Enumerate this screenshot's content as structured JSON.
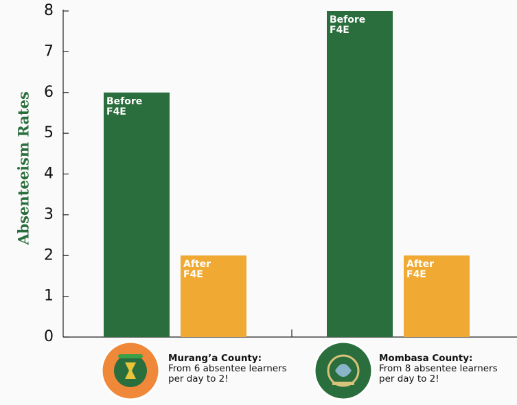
{
  "chart_data": {
    "type": "bar",
    "y_label": "Absenteeism Rates",
    "categories": [
      "Murang’a County:",
      "Mombasa County:"
    ],
    "captions": [
      "From 6 absentee learners per day to 2!",
      "From 8 absentee learners per day to 2!"
    ],
    "series": [
      {
        "name": "Before F4E",
        "color": "#2b6e3d",
        "values": [
          6,
          8
        ]
      },
      {
        "name": "After F4E",
        "color": "#f0a932",
        "values": [
          2,
          2
        ]
      }
    ],
    "ylim": [
      0,
      8
    ],
    "yticks": [
      0,
      1,
      2,
      3,
      4,
      5,
      6,
      7,
      8
    ],
    "grid": false
  }
}
